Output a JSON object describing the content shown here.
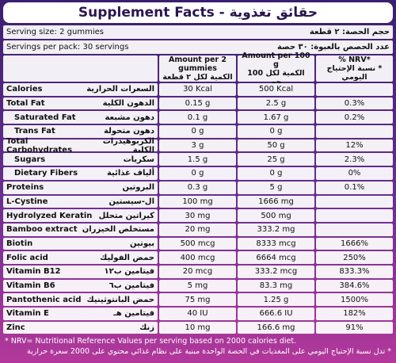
{
  "header": {
    "title": "Supplement Facts - حقائق تغذوية"
  },
  "serving_size": {
    "en": "Serving size: 2 gummies",
    "ar": "حجم الحصة: ٢ قطعة"
  },
  "servings_per_pack": {
    "en": "Servings per pack: 30 servings",
    "ar": "عدد الحصص بالعبوة: ٣٠ حصة"
  },
  "columns": [
    {
      "en": "Amount per 2 gummies",
      "ar": "الكمية لكل ٢ قطعة"
    },
    {
      "en": "Amount per 100 g",
      "ar": "الكمية لكل 100 جم"
    },
    {
      "en": "% NRV*",
      "ar": "* نسبة الإحتياج اليومي"
    }
  ],
  "rows": [
    {
      "en": "Calories",
      "ar": "السعرات الحرارية",
      "per_serving": "30 Kcal",
      "per_100g": "500 Kcal",
      "nrv": null
    },
    {
      "en": "Total Fat",
      "ar": "الدهون الكلية",
      "per_serving": "0.15 g",
      "per_100g": "2.5 g",
      "nrv": "0.3%"
    },
    {
      "en": "Saturated Fat",
      "ar": "دهون مشبعة",
      "per_serving": "0.1 g",
      "per_100g": "1.67 g",
      "nrv": "0.2%"
    },
    {
      "en": "Trans Fat",
      "ar": "دهون متحولة",
      "per_serving": "0 g",
      "per_100g": "0 g",
      "nrv": null
    },
    {
      "en": "Total Carbohydrates",
      "ar": "الكربوهيدرات الكلية",
      "per_serving": "3 g",
      "per_100g": "50 g",
      "nrv": "12%"
    },
    {
      "en": "Sugars",
      "ar": "سكريات",
      "per_serving": "1.5 g",
      "per_100g": "25 g",
      "nrv": "2.3%"
    },
    {
      "en": "Dietary Fibers",
      "ar": "ألياف غذائية",
      "per_serving": "0 g",
      "per_100g": "0 g",
      "nrv": "0%"
    },
    {
      "en": "Proteins",
      "ar": "البروتين",
      "per_serving": "0.3 g",
      "per_100g": "5 g",
      "nrv": "0.1%"
    },
    {
      "en": "L-Cystine",
      "ar": "ال-سيستين",
      "per_serving": "100 mg",
      "per_100g": "1666 mg",
      "nrv": null
    },
    {
      "en": "Hydrolyzed Keratin",
      "ar": "كيراتين متحلل",
      "per_serving": "30 mg",
      "per_100g": "500 mg",
      "nrv": null
    },
    {
      "en": "Bamboo extract",
      "ar": "مستخلص الخيزران",
      "per_serving": "20 mg",
      "per_100g": "333.2 mg",
      "nrv": null
    },
    {
      "en": "Biotin",
      "ar": "بيوتين",
      "per_serving": "500 mcg",
      "per_100g": "8333 mcg",
      "nrv": "1666%"
    },
    {
      "en": "Folic acid",
      "ar": "حمض الفوليك",
      "per_serving": "400 mcg",
      "per_100g": "6664 mcg",
      "nrv": "250%"
    },
    {
      "en": "Vitamin B12",
      "ar": "فيتامين ب١٢",
      "per_serving": "20 mcg",
      "per_100g": "333.2 mcg",
      "nrv": "833.3%"
    },
    {
      "en": "Vitamin B6",
      "ar": "فيتامين ب٦",
      "per_serving": "5 mg",
      "per_100g": "83.3 mg",
      "nrv": "384.6%"
    },
    {
      "en": "Pantothenic acid",
      "ar": "حمض البانتوثينيك",
      "per_serving": "75 mg",
      "per_100g": "1.25 g",
      "nrv": "1500%"
    },
    {
      "en": "Vitamin E",
      "ar": "فيتامين هـ",
      "per_serving": "40 IU",
      "per_100g": "666.6 IU",
      "nrv": "182%"
    },
    {
      "en": "Zinc",
      "ar": "زنك",
      "per_serving": "10 mg",
      "per_100g": "166.6 mg",
      "nrv": "91%"
    }
  ],
  "footer": {
    "en": "* NRV= Nutritional Reference Values per serving based on 2000 calories diet.",
    "ar": "* تدل نسبة الإحتياج اليومي على المغذيات في الحصة الواحدة مبنية على نظام غذائي محتوي على 2000 سعرة حرارية"
  }
}
